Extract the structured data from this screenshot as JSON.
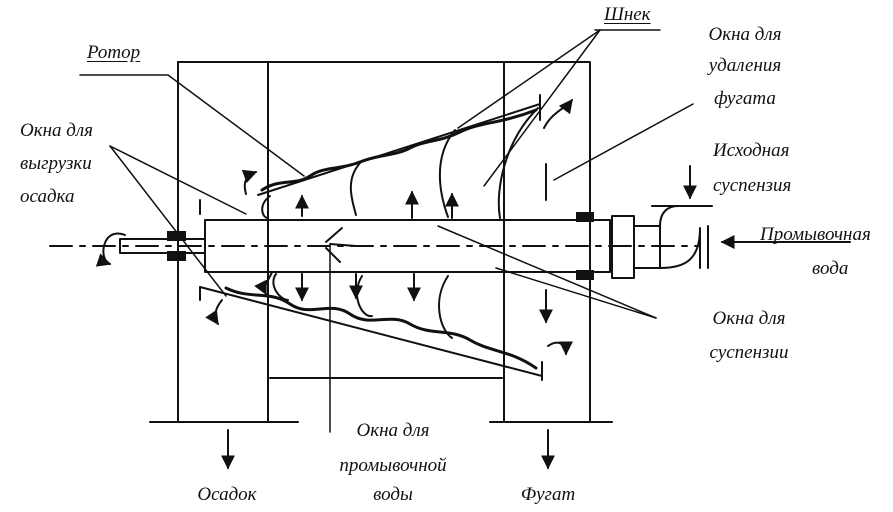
{
  "labels": {
    "rotor": "Ротор",
    "shnek": "Шнек",
    "okna_fugat_1": "Окна для",
    "okna_fugat_2": "удаления",
    "okna_fugat_3": "фугата",
    "okna_vygruzki_1": "Окна для",
    "okna_vygruzki_2": "выгрузки",
    "okna_vygruzki_3": "осадка",
    "iskhodnaya_1": "Исходная",
    "iskhodnaya_2": "суспензия",
    "promyvochnaya_1": "Промывочная",
    "promyvochnaya_2": "вода",
    "okna_suspenzii_1": "Окна для",
    "okna_suspenzii_2": "суспензии",
    "okna_promyv_1": "Окна для",
    "okna_promyv_2": "промывочной",
    "okna_promyv_3": "воды",
    "osadok": "Осадок",
    "fugat": "Фугат"
  },
  "colors": {
    "line": "#111111",
    "background": "#ffffff"
  }
}
